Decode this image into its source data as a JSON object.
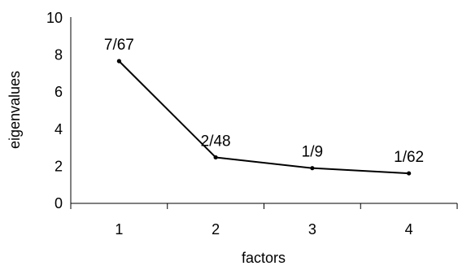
{
  "chart_data": {
    "type": "line",
    "x": [
      1,
      2,
      3,
      4
    ],
    "series": [
      {
        "values": [
          7.67,
          2.48,
          1.9,
          1.62
        ],
        "data_labels": [
          "7/67",
          "2/48",
          "1/9",
          "1/62"
        ]
      }
    ],
    "xlabel": "factors",
    "ylabel": "eigenvalues",
    "x_tick_labels": [
      "1",
      "2",
      "3",
      "4"
    ],
    "y_tick_labels": [
      "0",
      "2",
      "4",
      "6",
      "8",
      "10"
    ],
    "y_ticks": [
      0,
      2,
      4,
      6,
      8,
      10
    ],
    "ylim": [
      0,
      10
    ],
    "grid": false,
    "legend": "none",
    "line_color": "#000000"
  }
}
